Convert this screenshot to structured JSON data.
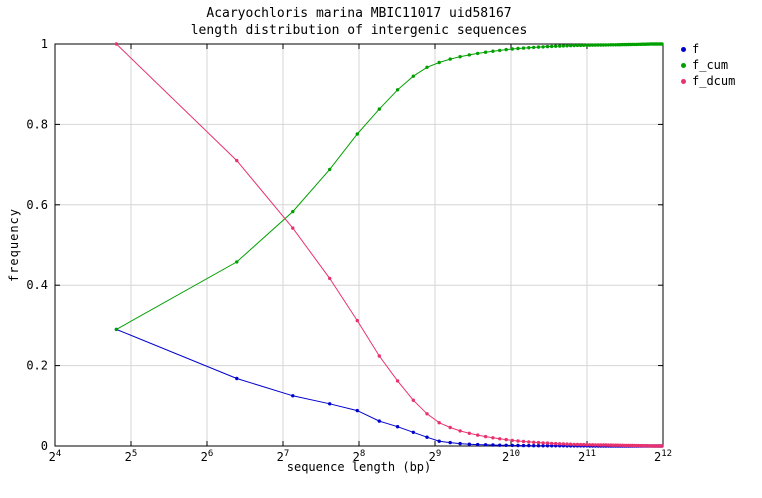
{
  "chart": {
    "title_line1": "Acaryochloris marina MBIC11017 uid58167",
    "title_line2": "length distribution of intergenic sequences",
    "xlabel": "sequence length (bp)",
    "ylabel": "frequency"
  },
  "legend": {
    "items": [
      {
        "label": "f"
      },
      {
        "label": "f_cum"
      },
      {
        "label": "f_dcum"
      }
    ]
  },
  "chart_data": {
    "type": "line",
    "title": "Acaryochloris marina MBIC11017 uid58167 — length distribution of intergenic sequences",
    "xlabel": "sequence length (bp)",
    "ylabel": "frequency",
    "x_scale": "log2",
    "xlim_log2": [
      4,
      12
    ],
    "ylim": [
      0,
      1
    ],
    "grid": true,
    "legend_position": "outside-top-right",
    "x_ticks": [
      {
        "value": 16,
        "label": "2^4"
      },
      {
        "value": 32,
        "label": "2^5"
      },
      {
        "value": 64,
        "label": "2^6"
      },
      {
        "value": 128,
        "label": "2^7"
      },
      {
        "value": 256,
        "label": "2^8"
      },
      {
        "value": 512,
        "label": "2^9"
      },
      {
        "value": 1024,
        "label": "2^10"
      },
      {
        "value": 2048,
        "label": "2^11"
      },
      {
        "value": 4096,
        "label": "2^12"
      }
    ],
    "y_ticks": [
      {
        "value": 0,
        "label": "0"
      },
      {
        "value": 0.2,
        "label": "0.2"
      },
      {
        "value": 0.4,
        "label": "0.4"
      },
      {
        "value": 0.6,
        "label": "0.6"
      },
      {
        "value": 0.8,
        "label": "0.8"
      },
      {
        "value": 1,
        "label": "1"
      }
    ],
    "x": [
      28,
      84,
      140,
      196,
      252,
      308,
      364,
      420,
      476,
      532,
      588,
      644,
      700,
      756,
      812,
      868,
      924,
      980,
      1036,
      1092,
      1148,
      1204,
      1260,
      1316,
      1372,
      1428,
      1484,
      1540,
      1596,
      1652,
      1708,
      1764,
      1820,
      1876,
      1932,
      1988,
      2044,
      2100,
      2156,
      2212,
      2268,
      2324,
      2380,
      2436,
      2492,
      2548,
      2604,
      2660,
      2716,
      2772,
      2828,
      2884,
      2940,
      2996,
      3052,
      3108,
      3164,
      3220,
      3276,
      3332,
      3388,
      3444,
      3500,
      3556,
      3612,
      3668,
      3724,
      3780,
      3836,
      3892,
      3948,
      4004,
      4060
    ],
    "series": [
      {
        "name": "f",
        "color": "#0000cd",
        "values": [
          0.29,
          0.168,
          0.125,
          0.105,
          0.088,
          0.062,
          0.048,
          0.034,
          0.022,
          0.012,
          0.0085,
          0.006,
          0.0045,
          0.0036,
          0.003,
          0.0025,
          0.0021,
          0.0018,
          0.0015,
          0.0013,
          0.0011,
          0.0009,
          0.0008,
          0.0007,
          0.0006,
          0.0006,
          0.0005,
          0.0005,
          0.0004,
          0.0004,
          0.0003,
          0.0003,
          0.0003,
          0.0002,
          0.0002,
          0.0002,
          0.0002,
          0.0001,
          0.0001,
          0.0001,
          0.0001,
          0.0001,
          0.0001,
          0.0001,
          0.0001,
          0.0001,
          0.0001,
          0.0001,
          0.0001,
          0.0001,
          0.0001,
          0.0001,
          0.0001,
          0.0001,
          0.0001,
          0.0001,
          0.0001,
          0.0001,
          0.0001,
          0.0001,
          0.0001,
          0.0001,
          0.0001,
          0.0001,
          0.0001,
          0.0001,
          0.0001,
          0,
          0,
          0,
          0,
          0,
          0
        ]
      },
      {
        "name": "f_cum",
        "color": "#00a000",
        "values": [
          0.29,
          0.458,
          0.583,
          0.688,
          0.776,
          0.838,
          0.886,
          0.92,
          0.942,
          0.954,
          0.9625,
          0.9685,
          0.973,
          0.9766,
          0.9796,
          0.9821,
          0.9842,
          0.986,
          0.9875,
          0.9888,
          0.9899,
          0.9908,
          0.9916,
          0.9923,
          0.9929,
          0.9935,
          0.994,
          0.9945,
          0.9949,
          0.9953,
          0.9956,
          0.9959,
          0.9962,
          0.9964,
          0.9966,
          0.9968,
          0.997,
          0.9971,
          0.9972,
          0.9973,
          0.9974,
          0.9975,
          0.9976,
          0.9977,
          0.9978,
          0.9979,
          0.998,
          0.9981,
          0.9982,
          0.9983,
          0.9984,
          0.9985,
          0.9986,
          0.9987,
          0.9988,
          0.9989,
          0.999,
          0.9991,
          0.9992,
          0.9993,
          0.9994,
          0.9995,
          0.9996,
          0.9997,
          0.9998,
          0.9999,
          1,
          1,
          1,
          1,
          1,
          1,
          1
        ]
      },
      {
        "name": "f_dcum",
        "color": "#e8326e",
        "values": [
          1,
          0.71,
          0.542,
          0.417,
          0.312,
          0.224,
          0.162,
          0.114,
          0.08,
          0.058,
          0.046,
          0.0375,
          0.0315,
          0.027,
          0.0234,
          0.0204,
          0.0179,
          0.0158,
          0.014,
          0.0125,
          0.0112,
          0.0101,
          0.0092,
          0.0084,
          0.0077,
          0.0071,
          0.0065,
          0.006,
          0.0055,
          0.0051,
          0.0047,
          0.0044,
          0.0041,
          0.0038,
          0.0036,
          0.0034,
          0.0032,
          0.003,
          0.0029,
          0.0028,
          0.0027,
          0.0026,
          0.0025,
          0.0024,
          0.0023,
          0.0022,
          0.0021,
          0.002,
          0.0019,
          0.0018,
          0.0017,
          0.0016,
          0.0015,
          0.0014,
          0.0013,
          0.0012,
          0.0011,
          0.001,
          0.0009,
          0.0008,
          0.0007,
          0.0006,
          0.0005,
          0.0004,
          0.0003,
          0.0002,
          0.0001,
          0,
          0,
          0,
          0,
          0,
          0
        ]
      }
    ]
  }
}
